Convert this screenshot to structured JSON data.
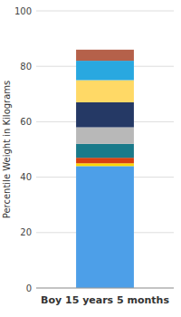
{
  "chart_data": {
    "type": "bar",
    "stacked": true,
    "grid": true,
    "ylabel": "Percentile Weight in Kilograms",
    "categories": [
      "Boy 15 years 5 months"
    ],
    "series": [
      {
        "color": "#4D9FE8",
        "values": [
          44
        ]
      },
      {
        "color": "#FFD700",
        "values": [
          1
        ]
      },
      {
        "color": "#D94010",
        "values": [
          2
        ]
      },
      {
        "color": "#1A7A8A",
        "values": [
          5
        ]
      },
      {
        "color": "#B8B8B8",
        "values": [
          6
        ]
      },
      {
        "color": "#253965",
        "values": [
          9
        ]
      },
      {
        "color": "#FFD966",
        "values": [
          8
        ]
      },
      {
        "color": "#29A8E0",
        "values": [
          7
        ]
      },
      {
        "color": "#B5614A",
        "values": [
          4
        ]
      }
    ],
    "ylim": [
      0,
      100
    ],
    "yticks": [
      0,
      20,
      40,
      60,
      80,
      100
    ]
  }
}
